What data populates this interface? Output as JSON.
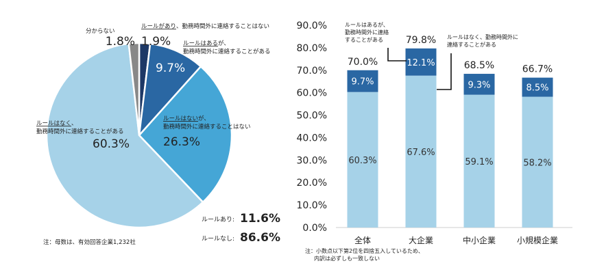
{
  "colors": {
    "navy": "#1d3866",
    "blue": "#2a67a3",
    "mid": "#45a6d6",
    "light": "#a6d2e8",
    "gray": "#888888"
  },
  "chart_data": [
    {
      "type": "pie",
      "slices": [
        {
          "label_bold": "ルールがあり",
          "label_rest": "、勤務時間外に連絡することはない",
          "value": 1.9,
          "value_label": "1.9%",
          "color": "#1d3866"
        },
        {
          "label_bold": "ルールはある",
          "label_rest": "が、",
          "label_line2": "勤務時間外に連絡することがある",
          "value": 9.7,
          "value_label": "9.7%",
          "color": "#2a67a3"
        },
        {
          "label_bold": "ルールはない",
          "label_rest": "が、",
          "label_line2": "勤務時間外に連絡することはない",
          "value": 26.3,
          "value_label": "26.3%",
          "color": "#45a6d6"
        },
        {
          "label_bold": "ルールはなく",
          "label_rest": "、",
          "label_line2": "勤務時間外に連絡することがある",
          "value": 60.3,
          "value_label": "60.3%",
          "color": "#a6d2e8"
        },
        {
          "label_bold": "分からない",
          "label_rest": "",
          "value": 1.8,
          "value_label": "1.8%",
          "color": "#888888"
        }
      ],
      "summary": [
        {
          "label": "ルールあり:",
          "value": "11.6%"
        },
        {
          "label": "ルールなし:",
          "value": "86.6%"
        }
      ],
      "note": "注：母数は、有効回答企業1,232社"
    },
    {
      "type": "bar",
      "stacked": true,
      "categories": [
        "全体",
        "大企業",
        "中小企業",
        "小規模企業"
      ],
      "series": [
        {
          "name": "ルールはなく、勤務時間外に連絡することがある",
          "values": [
            60.3,
            67.6,
            59.1,
            58.2
          ],
          "labels": [
            "60.3%",
            "67.6%",
            "59.1%",
            "58.2%"
          ],
          "color": "#a6d2e8"
        },
        {
          "name": "ルールはあるが、勤務時間外に連絡することがある",
          "values": [
            9.7,
            12.1,
            9.3,
            8.5
          ],
          "labels": [
            "9.7%",
            "12.1%",
            "9.3%",
            "8.5%"
          ],
          "color": "#2a67a3"
        }
      ],
      "totals": [
        "70.0%",
        "79.8%",
        "68.5%",
        "66.7%"
      ],
      "ylim": [
        0,
        90
      ],
      "yticks": [
        "0.0%",
        "10.0%",
        "20.0%",
        "30.0%",
        "40.0%",
        "50.0%",
        "60.0%",
        "70.0%",
        "80.0%",
        "90.0%"
      ],
      "annotations": [
        {
          "lines": [
            "ルールはあるが、",
            "勤務時間外に連絡",
            "することがある"
          ]
        },
        {
          "lines": [
            "ルールはなく、勤務時間外に",
            "連絡することがある"
          ]
        }
      ],
      "note": [
        "注：小数点以下第2位を四捨五入しているため、",
        "内訳は必ずしも一致しない"
      ]
    }
  ]
}
